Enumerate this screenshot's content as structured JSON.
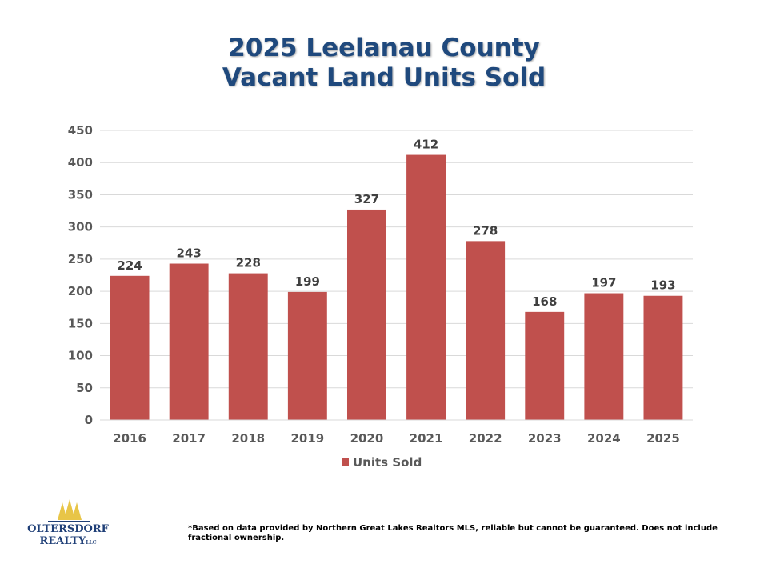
{
  "title_line1": "2025 Leelanau County",
  "title_line2": "Vacant Land Units Sold",
  "chart_data": {
    "type": "bar",
    "categories": [
      "2016",
      "2017",
      "2018",
      "2019",
      "2020",
      "2021",
      "2022",
      "2023",
      "2024",
      "2025"
    ],
    "series": [
      {
        "name": "Units Sold",
        "values": [
          224,
          243,
          228,
          199,
          327,
          412,
          278,
          168,
          197,
          193
        ]
      }
    ],
    "ylim": [
      0,
      450
    ],
    "yticks": [
      0,
      50,
      100,
      150,
      200,
      250,
      300,
      350,
      400,
      450
    ],
    "grid": true,
    "legend": "bottom",
    "xlabel": "",
    "ylabel": ""
  },
  "colors": {
    "bar": "#C0504D",
    "title": "#1F497D",
    "grid": "#D9D9D9",
    "tick_text": "#595959",
    "data_label": "#404040",
    "logo_trees": "#E8C547",
    "logo_text": "#1F3F77"
  },
  "footnote": "*Based on data provided by Northern Great Lakes Realtors MLS, reliable but cannot be guaranteed. Does not include fractional ownership.",
  "logo": {
    "line1": "OLTERSDORF",
    "line2": "REALTY",
    "suffix": "LLC"
  }
}
